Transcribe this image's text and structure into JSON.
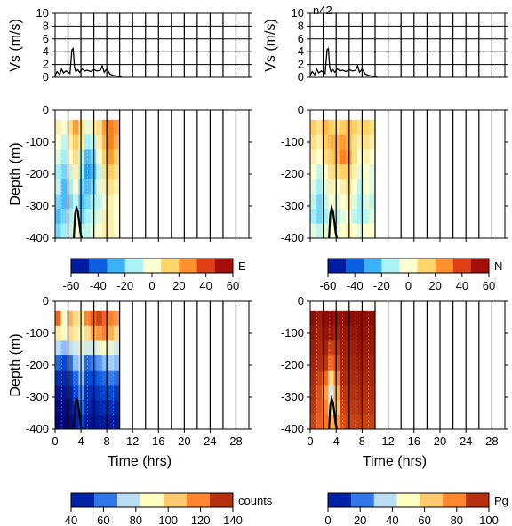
{
  "station_label": "n42",
  "chart_data": [
    {
      "type": "line",
      "panel": "top-left",
      "ylabel": "Vs (m/s)",
      "ylim": [
        0,
        10
      ],
      "yticks": [
        0,
        2,
        4,
        6,
        8,
        10
      ],
      "xlim": [
        0,
        30
      ],
      "grid": true,
      "series": [
        {
          "x": [
            0,
            0.3,
            0.7,
            1.0,
            1.3,
            1.7,
            2.0,
            2.3,
            2.6,
            2.8,
            3.0,
            3.2,
            3.5,
            3.8,
            4.2,
            4.6,
            5.0,
            5.5,
            6.0,
            6.5,
            7.0,
            7.3,
            7.6,
            8.0,
            8.5,
            9.0,
            9.5,
            10.0,
            10.3
          ],
          "values": [
            0.3,
            0.9,
            0.4,
            1.3,
            0.7,
            1.0,
            0.8,
            0.6,
            4.3,
            4.5,
            1.6,
            0.9,
            1.2,
            0.8,
            1.3,
            1.0,
            1.1,
            0.9,
            1.2,
            1.0,
            1.1,
            1.8,
            0.8,
            1.3,
            0.5,
            0.3,
            0.2,
            0.15,
            0.1
          ]
        }
      ]
    },
    {
      "type": "line",
      "panel": "top-right",
      "ylabel": "Vs (m/s)",
      "ylim": [
        0,
        10
      ],
      "yticks": [
        0,
        2,
        4,
        6,
        8,
        10
      ],
      "xlim": [
        0,
        30
      ],
      "grid": true,
      "series": [
        {
          "x": [
            0,
            0.3,
            0.7,
            1.0,
            1.3,
            1.7,
            2.0,
            2.3,
            2.6,
            2.8,
            3.0,
            3.2,
            3.5,
            3.8,
            4.2,
            4.6,
            5.0,
            5.5,
            6.0,
            6.5,
            7.0,
            7.3,
            7.6,
            8.0,
            8.5,
            9.0,
            9.5,
            10.0,
            10.3
          ],
          "values": [
            0.3,
            0.9,
            0.4,
            1.3,
            0.7,
            1.0,
            0.8,
            0.6,
            4.3,
            4.5,
            1.6,
            0.9,
            1.2,
            0.8,
            1.3,
            1.0,
            1.1,
            0.9,
            1.2,
            1.0,
            1.1,
            1.8,
            0.8,
            1.3,
            0.5,
            0.3,
            0.2,
            0.15,
            0.1
          ]
        }
      ]
    },
    {
      "type": "heatmap",
      "panel": "mid-left",
      "ylabel": "Depth (m)",
      "ylim": [
        -400,
        0
      ],
      "yticks": [
        0,
        -100,
        -200,
        -300,
        -400
      ],
      "xlim": [
        0,
        30
      ],
      "xticks": [
        0,
        4,
        8,
        12,
        16,
        20,
        24,
        28
      ],
      "x_range_hrs": [
        0,
        10
      ],
      "depth_range_m": [
        -400,
        -30
      ],
      "field": "E",
      "colorbar": {
        "label": "E",
        "ticks": [
          -60,
          -40,
          -20,
          0,
          20,
          40,
          60
        ],
        "range": [
          -60,
          60
        ],
        "colors": [
          "#00007a",
          "#0040d0",
          "#20a0ff",
          "#a0f0f8",
          "#ffffd0",
          "#ffd060",
          "#ff8020",
          "#d02010",
          "#800000"
        ]
      },
      "values_by_depth_band": [
        [
          5,
          0,
          10,
          25,
          8,
          -5,
          5,
          10,
          25,
          30,
          25
        ],
        [
          0,
          -10,
          5,
          15,
          5,
          -15,
          -10,
          5,
          20,
          30,
          20
        ],
        [
          -5,
          -15,
          0,
          10,
          -10,
          -25,
          -20,
          0,
          15,
          25,
          15
        ],
        [
          -15,
          -20,
          -10,
          5,
          -15,
          -30,
          -25,
          -10,
          10,
          15,
          10
        ],
        [
          -10,
          -25,
          -15,
          0,
          -20,
          -25,
          -20,
          -5,
          5,
          10,
          5
        ],
        [
          -20,
          -25,
          -20,
          -10,
          -25,
          -20,
          -15,
          -10,
          0,
          5,
          0
        ],
        [
          -25,
          -20,
          -15,
          -5,
          -20,
          -15,
          -10,
          -5,
          5,
          5,
          0
        ],
        [
          -20,
          -15,
          -10,
          0,
          -10,
          -10,
          -5,
          0,
          5,
          5,
          0
        ]
      ]
    },
    {
      "type": "heatmap",
      "panel": "mid-right",
      "ylabel": "",
      "ylim": [
        -400,
        0
      ],
      "yticks": [
        0,
        -100,
        -200,
        -300,
        -400
      ],
      "xlim": [
        0,
        30
      ],
      "xticks": [
        0,
        4,
        8,
        12,
        16,
        20,
        24,
        28
      ],
      "x_range_hrs": [
        0,
        10
      ],
      "depth_range_m": [
        -400,
        -30
      ],
      "field": "N",
      "colorbar": {
        "label": "N",
        "ticks": [
          -60,
          -40,
          -20,
          0,
          20,
          40,
          60
        ],
        "range": [
          -60,
          60
        ],
        "colors": [
          "#00007a",
          "#0040d0",
          "#20a0ff",
          "#a0f0f8",
          "#ffffd0",
          "#ffd060",
          "#ff8020",
          "#d02010",
          "#800000"
        ]
      },
      "values_by_depth_band": [
        [
          15,
          10,
          20,
          15,
          10,
          15,
          20,
          15,
          10,
          15,
          10
        ],
        [
          10,
          5,
          15,
          20,
          20,
          25,
          20,
          10,
          5,
          10,
          5
        ],
        [
          5,
          0,
          10,
          15,
          20,
          30,
          25,
          10,
          0,
          5,
          0
        ],
        [
          0,
          -10,
          0,
          10,
          10,
          15,
          15,
          5,
          -5,
          0,
          -5
        ],
        [
          -5,
          -15,
          -5,
          5,
          0,
          5,
          10,
          0,
          -10,
          0,
          -5
        ],
        [
          -10,
          -20,
          -10,
          0,
          -5,
          0,
          5,
          -5,
          -15,
          -5,
          -10
        ],
        [
          -15,
          -20,
          -15,
          -5,
          -10,
          -5,
          0,
          -10,
          -15,
          -10,
          -5
        ],
        [
          -5,
          -10,
          -5,
          0,
          -5,
          0,
          5,
          0,
          -5,
          0,
          0
        ]
      ]
    },
    {
      "type": "heatmap",
      "panel": "bottom-left",
      "ylabel": "Depth (m)",
      "xlabel": "Time (hrs)",
      "ylim": [
        -400,
        0
      ],
      "yticks": [
        0,
        -100,
        -200,
        -300,
        -400
      ],
      "xlim": [
        0,
        30
      ],
      "xticks": [
        0,
        4,
        8,
        12,
        16,
        20,
        24,
        28
      ],
      "x_range_hrs": [
        0,
        10
      ],
      "depth_range_m": [
        -400,
        -30
      ],
      "field": "counts",
      "colorbar": {
        "label": "counts",
        "ticks": [
          40,
          60,
          80,
          100,
          120,
          140
        ],
        "range": [
          40,
          140
        ],
        "colors": [
          "#00007a",
          "#0050e0",
          "#b0d8ff",
          "#ffffc0",
          "#ffc060",
          "#ff7020",
          "#800000"
        ]
      },
      "values_by_depth_band": [
        [
          125,
          90,
          110,
          100,
          95,
          120,
          125,
          130,
          125,
          120,
          115
        ],
        [
          95,
          90,
          100,
          95,
          90,
          100,
          110,
          115,
          120,
          110,
          100
        ],
        [
          75,
          70,
          75,
          80,
          85,
          80,
          80,
          85,
          90,
          85,
          80
        ],
        [
          60,
          55,
          60,
          70,
          75,
          60,
          62,
          65,
          70,
          72,
          70
        ],
        [
          50,
          48,
          52,
          60,
          70,
          55,
          55,
          58,
          60,
          62,
          60
        ],
        [
          45,
          44,
          46,
          55,
          65,
          50,
          50,
          52,
          55,
          55,
          52
        ],
        [
          42,
          42,
          44,
          50,
          60,
          48,
          46,
          48,
          50,
          50,
          48
        ],
        [
          40,
          41,
          42,
          48,
          55,
          45,
          44,
          45,
          46,
          46,
          45
        ]
      ]
    },
    {
      "type": "heatmap",
      "panel": "bottom-right",
      "ylabel": "",
      "xlabel": "Time (hrs)",
      "ylim": [
        -400,
        0
      ],
      "yticks": [
        0,
        -100,
        -200,
        -300,
        -400
      ],
      "xlim": [
        0,
        30
      ],
      "xticks": [
        0,
        4,
        8,
        12,
        16,
        20,
        24,
        28
      ],
      "x_range_hrs": [
        0,
        10
      ],
      "depth_range_m": [
        -400,
        -30
      ],
      "field": "Pg",
      "colorbar": {
        "label": "Pg",
        "ticks": [
          0,
          20,
          40,
          60,
          80,
          100
        ],
        "range": [
          0,
          100
        ],
        "colors": [
          "#00007a",
          "#0050e0",
          "#b0d8ff",
          "#ffffc0",
          "#ffc060",
          "#ff7020",
          "#800000"
        ]
      },
      "values_by_depth_band": [
        [
          98,
          96,
          98,
          98,
          97,
          98,
          98,
          98,
          98,
          98,
          98
        ],
        [
          97,
          95,
          97,
          96,
          95,
          97,
          96,
          97,
          98,
          97,
          97
        ],
        [
          96,
          94,
          95,
          90,
          92,
          96,
          95,
          96,
          97,
          96,
          96
        ],
        [
          95,
          93,
          92,
          85,
          88,
          95,
          94,
          95,
          96,
          95,
          95
        ],
        [
          94,
          90,
          85,
          60,
          80,
          94,
          93,
          94,
          95,
          94,
          94
        ],
        [
          93,
          88,
          75,
          40,
          70,
          92,
          92,
          93,
          94,
          93,
          93
        ],
        [
          92,
          87,
          80,
          50,
          65,
          90,
          91,
          92,
          93,
          92,
          92
        ],
        [
          90,
          86,
          82,
          70,
          75,
          88,
          90,
          90,
          91,
          90,
          90
        ]
      ]
    }
  ]
}
